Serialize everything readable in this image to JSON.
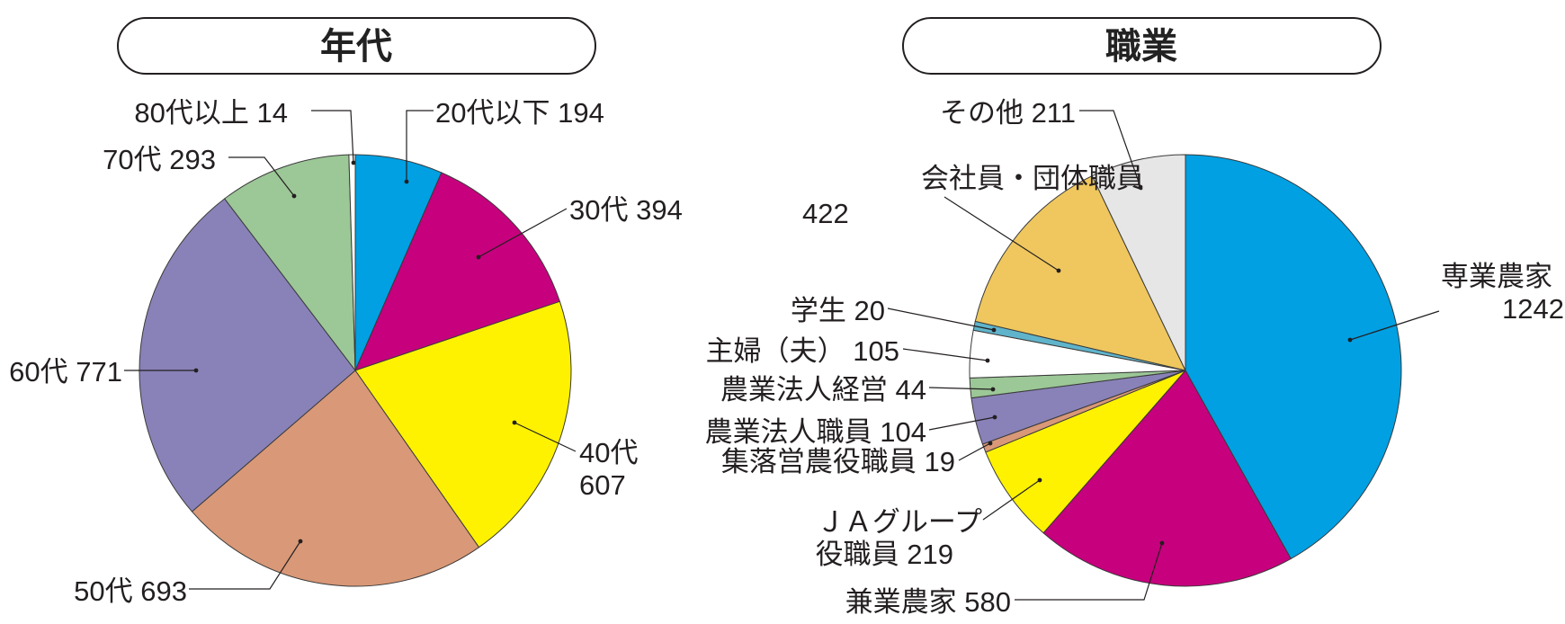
{
  "chart_data": [
    {
      "type": "pie",
      "title": "年代",
      "slices": [
        {
          "name": "20代以下",
          "value": 194,
          "color": "#00a0e3",
          "label_lines": [
            "20代以下 194"
          ]
        },
        {
          "name": "30代",
          "value": 394,
          "color": "#c7007d",
          "label_lines": [
            "30代 394"
          ]
        },
        {
          "name": "40代",
          "value": 607,
          "color": "#fff200",
          "label_lines": [
            "40代",
            "607"
          ]
        },
        {
          "name": "50代",
          "value": 693,
          "color": "#d99877",
          "label_lines": [
            "50代 693"
          ]
        },
        {
          "name": "60代",
          "value": 771,
          "color": "#8982b8",
          "label_lines": [
            "60代 771"
          ]
        },
        {
          "name": "70代",
          "value": 293,
          "color": "#9cc797",
          "label_lines": [
            "70代 293"
          ]
        },
        {
          "name": "80代以上",
          "value": 14,
          "color": "#ffffff",
          "label_lines": [
            "80代以上 14"
          ]
        }
      ]
    },
    {
      "type": "pie",
      "title": "職業",
      "slices": [
        {
          "name": "専業農家",
          "value": 1242,
          "color": "#00a0e3",
          "label_lines": [
            "専業農家",
            "1242"
          ]
        },
        {
          "name": "兼業農家",
          "value": 580,
          "color": "#c7007d",
          "label_lines": [
            "兼業農家 580"
          ]
        },
        {
          "name": "ＪＡグループ役職員",
          "value": 219,
          "color": "#fff200",
          "label_lines": [
            "ＪＡグループ",
            "役職員 219"
          ]
        },
        {
          "name": "集落営農役職員",
          "value": 19,
          "color": "#d99877",
          "label_lines": [
            "集落営農役職員 19"
          ]
        },
        {
          "name": "農業法人職員",
          "value": 104,
          "color": "#8982b8",
          "label_lines": [
            "農業法人職員 104"
          ]
        },
        {
          "name": "農業法人経営",
          "value": 44,
          "color": "#9cc797",
          "label_lines": [
            "農業法人経営 44"
          ]
        },
        {
          "name": "主婦（夫）",
          "value": 105,
          "color": "#ffffff",
          "label_lines": [
            "主婦（夫） 105"
          ]
        },
        {
          "name": "学生",
          "value": 20,
          "color": "#5fb4cb",
          "label_lines": [
            "学生 20"
          ]
        },
        {
          "name": "会社員・団体職員",
          "value": 422,
          "color": "#efc75e",
          "label_lines": [
            "会社員・団体職員",
            "422"
          ]
        },
        {
          "name": "その他",
          "value": 211,
          "color": "#e6e6e6",
          "label_lines": [
            "その他 211"
          ]
        }
      ]
    }
  ]
}
